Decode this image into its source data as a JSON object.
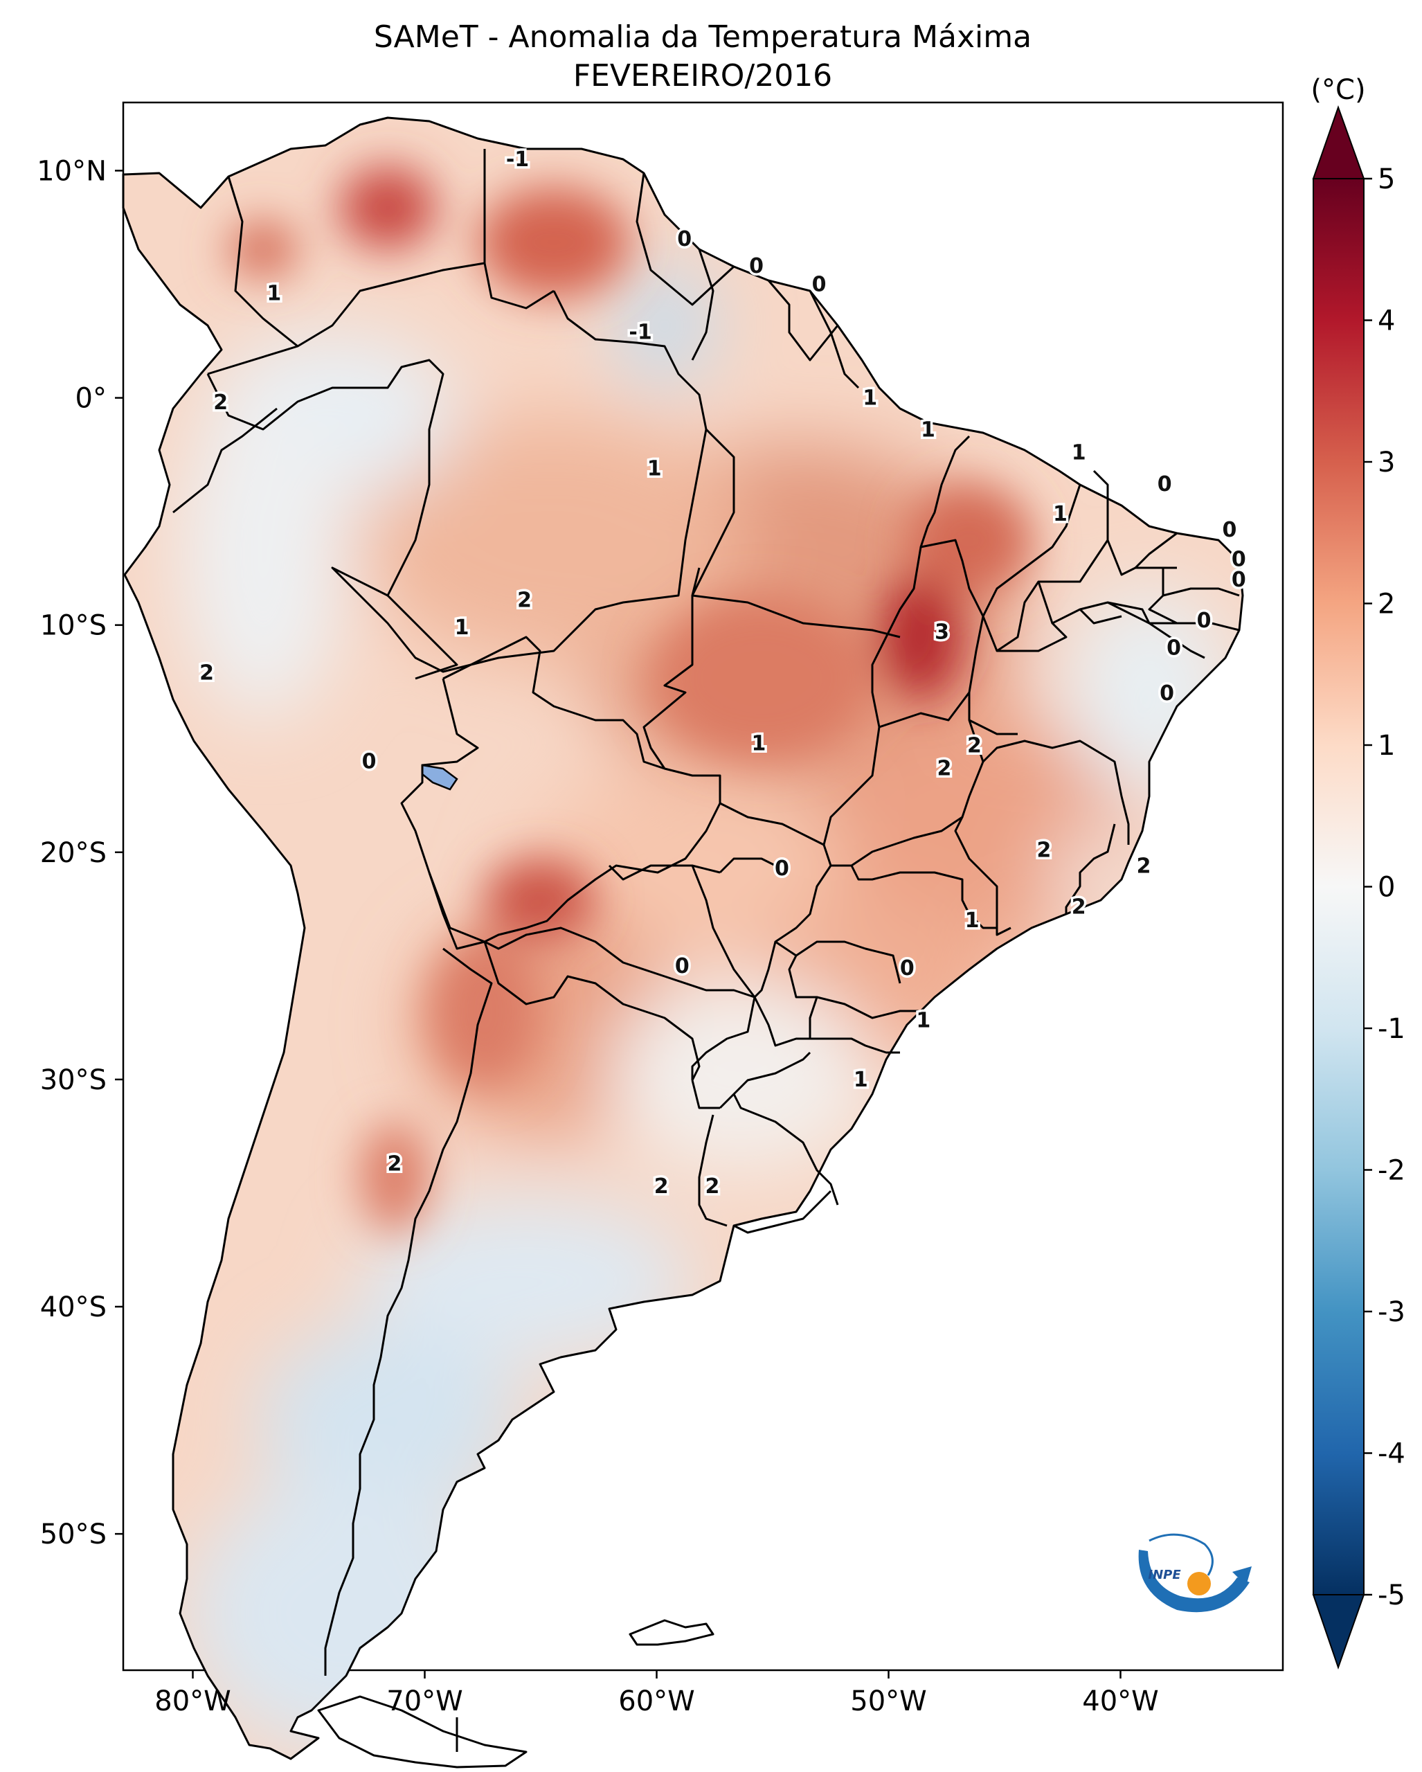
{
  "title": {
    "line1": "SAMeT - Anomalia da Temperatura Máxima",
    "line2": "FEVEREIRO/2016"
  },
  "map": {
    "lon_range": [
      -83,
      -33
    ],
    "lat_range": [
      -56,
      13
    ],
    "x_ticks": [
      {
        "lon": -80,
        "label": "80°W"
      },
      {
        "lon": -70,
        "label": "70°W"
      },
      {
        "lon": -60,
        "label": "60°W"
      },
      {
        "lon": -50,
        "label": "50°W"
      },
      {
        "lon": -40,
        "label": "40°W"
      }
    ],
    "y_ticks": [
      {
        "lat": 10,
        "label": "10°N"
      },
      {
        "lat": 0,
        "label": "0°"
      },
      {
        "lat": -10,
        "label": "10°S"
      },
      {
        "lat": -20,
        "label": "20°S"
      },
      {
        "lat": -30,
        "label": "30°S"
      },
      {
        "lat": -40,
        "label": "40°S"
      },
      {
        "lat": -50,
        "label": "50°S"
      }
    ],
    "contour_labels": [
      {
        "lon": -66.0,
        "lat": 10.5,
        "label": "-1"
      },
      {
        "lon": -76.5,
        "lat": 4.6,
        "label": "1"
      },
      {
        "lon": -58.8,
        "lat": 7.0,
        "label": "0"
      },
      {
        "lon": -55.7,
        "lat": 5.8,
        "label": "0"
      },
      {
        "lon": -53.0,
        "lat": 5.0,
        "label": "0"
      },
      {
        "lon": -60.7,
        "lat": 2.9,
        "label": "-1"
      },
      {
        "lon": -78.8,
        "lat": -0.2,
        "label": "2"
      },
      {
        "lon": -50.8,
        "lat": 0.0,
        "label": "1"
      },
      {
        "lon": -48.3,
        "lat": -1.4,
        "label": "1"
      },
      {
        "lon": -41.8,
        "lat": -2.4,
        "label": "1"
      },
      {
        "lon": -60.1,
        "lat": -3.1,
        "label": "1"
      },
      {
        "lon": -38.1,
        "lat": -3.8,
        "label": "0"
      },
      {
        "lon": -42.6,
        "lat": -5.1,
        "label": "1"
      },
      {
        "lon": -35.3,
        "lat": -5.8,
        "label": "0"
      },
      {
        "lon": -34.9,
        "lat": -7.1,
        "label": "0"
      },
      {
        "lon": -34.9,
        "lat": -8.0,
        "label": "0"
      },
      {
        "lon": -36.4,
        "lat": -9.8,
        "label": "0"
      },
      {
        "lon": -65.7,
        "lat": -8.9,
        "label": "2"
      },
      {
        "lon": -68.4,
        "lat": -10.1,
        "label": "1"
      },
      {
        "lon": -47.7,
        "lat": -10.3,
        "label": "3"
      },
      {
        "lon": -37.7,
        "lat": -11.0,
        "label": "0"
      },
      {
        "lon": -79.4,
        "lat": -12.1,
        "label": "2"
      },
      {
        "lon": -38.0,
        "lat": -13.0,
        "label": "0"
      },
      {
        "lon": -55.6,
        "lat": -15.2,
        "label": "1"
      },
      {
        "lon": -46.3,
        "lat": -15.3,
        "label": "2"
      },
      {
        "lon": -47.6,
        "lat": -16.3,
        "label": "2"
      },
      {
        "lon": -72.4,
        "lat": -16.0,
        "label": "0"
      },
      {
        "lon": -43.3,
        "lat": -19.9,
        "label": "2"
      },
      {
        "lon": -39.0,
        "lat": -20.6,
        "label": "2"
      },
      {
        "lon": -54.6,
        "lat": -20.7,
        "label": "0"
      },
      {
        "lon": -41.8,
        "lat": -22.4,
        "label": "2"
      },
      {
        "lon": -46.4,
        "lat": -23.0,
        "label": "1"
      },
      {
        "lon": -49.2,
        "lat": -25.1,
        "label": "0"
      },
      {
        "lon": -58.9,
        "lat": -25.0,
        "label": "0"
      },
      {
        "lon": -48.5,
        "lat": -27.4,
        "label": "1"
      },
      {
        "lon": -51.2,
        "lat": -30.0,
        "label": "1"
      },
      {
        "lon": -71.3,
        "lat": -33.7,
        "label": "2"
      },
      {
        "lon": -59.8,
        "lat": -34.7,
        "label": "2"
      },
      {
        "lon": -57.6,
        "lat": -34.7,
        "label": "2"
      }
    ]
  },
  "colorbar": {
    "unit": "(°C)",
    "range": [
      -5,
      5
    ],
    "ticks": [
      {
        "value": 5,
        "label": "5"
      },
      {
        "value": 4,
        "label": "4"
      },
      {
        "value": 3,
        "label": "3"
      },
      {
        "value": 2,
        "label": "2"
      },
      {
        "value": 1,
        "label": "1"
      },
      {
        "value": 0,
        "label": "0"
      },
      {
        "value": -1,
        "label": "-1"
      },
      {
        "value": -2,
        "label": "-2"
      },
      {
        "value": -3,
        "label": "-3"
      },
      {
        "value": -4,
        "label": "-4"
      },
      {
        "value": -5,
        "label": "-5"
      }
    ],
    "colors": [
      "#053061",
      "#2166ac",
      "#4393c3",
      "#92c5de",
      "#d1e5f0",
      "#f7f7f7",
      "#fddbc7",
      "#f4a582",
      "#d6604d",
      "#b2182b",
      "#67001f"
    ]
  },
  "logo": {
    "text": "INPE"
  }
}
